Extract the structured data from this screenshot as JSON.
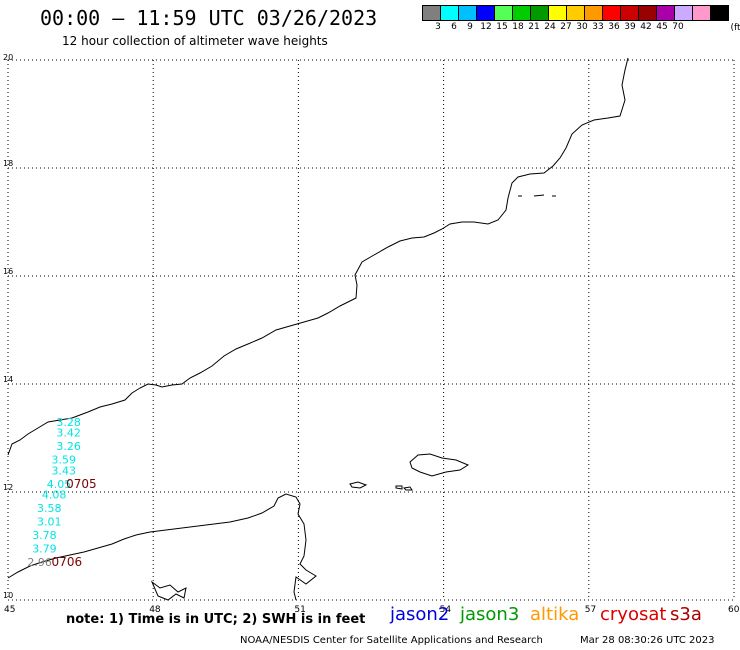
{
  "header": {
    "title": "00:00 – 11:59 UTC 03/26/2023",
    "subtitle": "12 hour collection of altimeter wave heights"
  },
  "colorbar": {
    "colors": [
      "#7f7f7f",
      "#00ffff",
      "#00bfff",
      "#0000ff",
      "#55ff55",
      "#00cc00",
      "#009900",
      "#ffff00",
      "#ffcc00",
      "#ff9900",
      "#ff0000",
      "#cc0000",
      "#990000",
      "#aa00aa",
      "#ccaaff",
      "#ff99cc",
      "#000000"
    ],
    "labels": [
      "3",
      "6",
      "9",
      "12",
      "15",
      "18",
      "21",
      "24",
      "27",
      "30",
      "33",
      "36",
      "39",
      "42",
      "45",
      "70"
    ],
    "unit": "(ft)"
  },
  "axes": {
    "x": {
      "min": 45,
      "max": 60,
      "ticks": [
        "45",
        "48",
        "51",
        "54",
        "57",
        "60"
      ]
    },
    "y": {
      "min": 10,
      "max": 20,
      "ticks": [
        "10",
        "12",
        "14",
        "16",
        "18",
        "20"
      ]
    }
  },
  "wave_heights": {
    "color": "#00e5e5",
    "points": [
      {
        "lon": 46.0,
        "lat": 13.3,
        "value": "3.28"
      },
      {
        "lon": 46.0,
        "lat": 13.1,
        "value": "3.42"
      },
      {
        "lon": 46.0,
        "lat": 12.85,
        "value": "3.26"
      },
      {
        "lon": 45.9,
        "lat": 12.6,
        "value": "3.59"
      },
      {
        "lon": 45.9,
        "lat": 12.4,
        "value": "3.43"
      },
      {
        "lon": 45.8,
        "lat": 12.15,
        "value": "4.05"
      },
      {
        "lon": 45.7,
        "lat": 11.95,
        "value": "4.08"
      },
      {
        "lon": 45.6,
        "lat": 11.7,
        "value": "3.58"
      },
      {
        "lon": 45.6,
        "lat": 11.45,
        "value": "3.01"
      },
      {
        "lon": 45.5,
        "lat": 11.2,
        "value": "3.78"
      },
      {
        "lon": 45.5,
        "lat": 10.95,
        "value": "3.79"
      },
      {
        "lon": 45.4,
        "lat": 10.7,
        "value": "2.96",
        "color": "#7f7f7f"
      }
    ]
  },
  "time_labels": [
    {
      "lon": 46.2,
      "lat": 12.15,
      "text": "0705"
    },
    {
      "lon": 45.9,
      "lat": 10.7,
      "text": "0706"
    }
  ],
  "footer": {
    "note": "note:  1) Time is in UTC; 2) SWH is in feet",
    "satellites": [
      {
        "name": "jason2",
        "color": "#0000dd"
      },
      {
        "name": "jason3",
        "color": "#009900"
      },
      {
        "name": "altika",
        "color": "#ff9900"
      },
      {
        "name": "cryosat",
        "color": "#dd0000"
      },
      {
        "name": "s3a",
        "color": "#aa0000"
      }
    ],
    "credit": "NOAA/NESDIS Center for Satellite Applications and Research",
    "timestamp": "Mar 28 08:30:26 UTC 2023"
  }
}
